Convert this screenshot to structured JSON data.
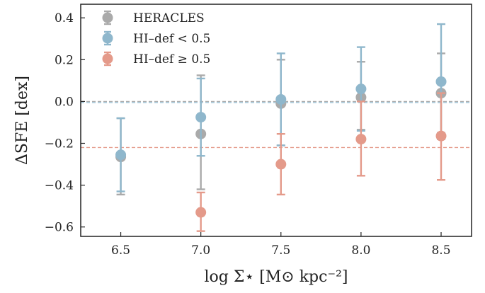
{
  "chart_data": {
    "type": "scatter",
    "xlabel": "log Σ⋆ [M⊙ kpc⁻²]",
    "ylabel": "ΔSFE [dex]",
    "xlim": [
      6.25,
      8.69
    ],
    "ylim": [
      -0.645,
      0.465
    ],
    "x_ticks": [
      6.5,
      7.0,
      7.5,
      8.0,
      8.5
    ],
    "x_tick_labels": [
      "6.5",
      "7.0",
      "7.5",
      "8.0",
      "8.5"
    ],
    "y_ticks": [
      -0.6,
      -0.4,
      -0.2,
      0.0,
      0.2,
      0.4
    ],
    "y_tick_labels": [
      "−0.6",
      "−0.4",
      "−0.2",
      "0.0",
      "0.2",
      "0.4"
    ],
    "grid": false,
    "legend_position": "top-left",
    "series": [
      {
        "name": "HERACLES",
        "color": "#aaaaaa",
        "x": [
          6.5,
          7.0,
          7.5,
          8.0,
          8.5
        ],
        "y": [
          -0.265,
          -0.155,
          -0.01,
          0.02,
          0.04
        ],
        "y_err_low": [
          -0.445,
          -0.42,
          -0.21,
          -0.135,
          -0.15
        ],
        "y_err_high": [
          -0.08,
          0.125,
          0.2,
          0.19,
          0.23
        ]
      },
      {
        "name": "HI–def < 0.5",
        "color": "#8fb7cc",
        "x": [
          6.5,
          7.0,
          7.5,
          8.0,
          8.5
        ],
        "y": [
          -0.255,
          -0.075,
          0.01,
          0.06,
          0.095
        ],
        "y_err_low": [
          -0.43,
          -0.26,
          -0.21,
          -0.14,
          -0.18
        ],
        "y_err_high": [
          -0.08,
          0.11,
          0.23,
          0.26,
          0.37
        ]
      },
      {
        "name": "HI–def ≥ 0.5",
        "color": "#e49a8a",
        "x": [
          7.0,
          7.5,
          8.0,
          8.5
        ],
        "y": [
          -0.53,
          -0.3,
          -0.18,
          -0.165
        ],
        "y_err_low": [
          -0.62,
          -0.445,
          -0.355,
          -0.375
        ],
        "y_err_high": [
          -0.435,
          -0.155,
          0.0,
          0.04
        ]
      }
    ],
    "reference_lines": [
      {
        "y": 0.0,
        "color": "#aaaaaa"
      },
      {
        "y": -0.005,
        "color": "#8fb7cc"
      },
      {
        "y": -0.22,
        "color": "#e49a8a"
      }
    ]
  }
}
